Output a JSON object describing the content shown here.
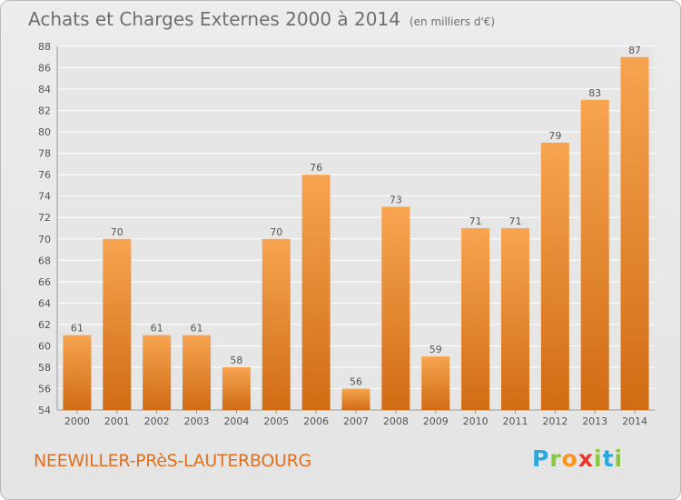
{
  "header": {
    "title": "Achats et Charges Externes 2000 à 2014",
    "unit": "(en milliers d'€)"
  },
  "footer": {
    "town": "NEEWILLER-PRèS-LAUTERBOURG",
    "brand_letters": [
      "P",
      "r",
      "o",
      "x",
      "i",
      "t",
      "i"
    ],
    "brand_colors": [
      "#2aa7de",
      "#8cc63f",
      "#f7941d",
      "#e8352e",
      "#8cc63f",
      "#2aa7de",
      "#8cc63f"
    ]
  },
  "colors": {
    "bar_light": "#f7a450",
    "bar_dark": "#d06c14",
    "grid": "#ffffff",
    "axis_text": "#555555",
    "background": "#e8e8e8"
  },
  "chart_data": {
    "type": "bar",
    "title": "Achats et Charges Externes 2000 à 2014",
    "subtitle": "(en milliers d'€)",
    "categories": [
      "2000",
      "2001",
      "2002",
      "2003",
      "2004",
      "2005",
      "2006",
      "2007",
      "2008",
      "2009",
      "2010",
      "2011",
      "2012",
      "2013",
      "2014"
    ],
    "values": [
      61,
      70,
      61,
      61,
      58,
      70,
      76,
      56,
      73,
      59,
      71,
      71,
      79,
      83,
      87
    ],
    "ylim": [
      54,
      88
    ],
    "yticks": [
      54,
      56,
      58,
      60,
      62,
      64,
      66,
      68,
      70,
      72,
      74,
      76,
      78,
      80,
      82,
      84,
      86,
      88
    ],
    "grid": true,
    "data_labels": true,
    "xlabel": "",
    "ylabel": ""
  }
}
